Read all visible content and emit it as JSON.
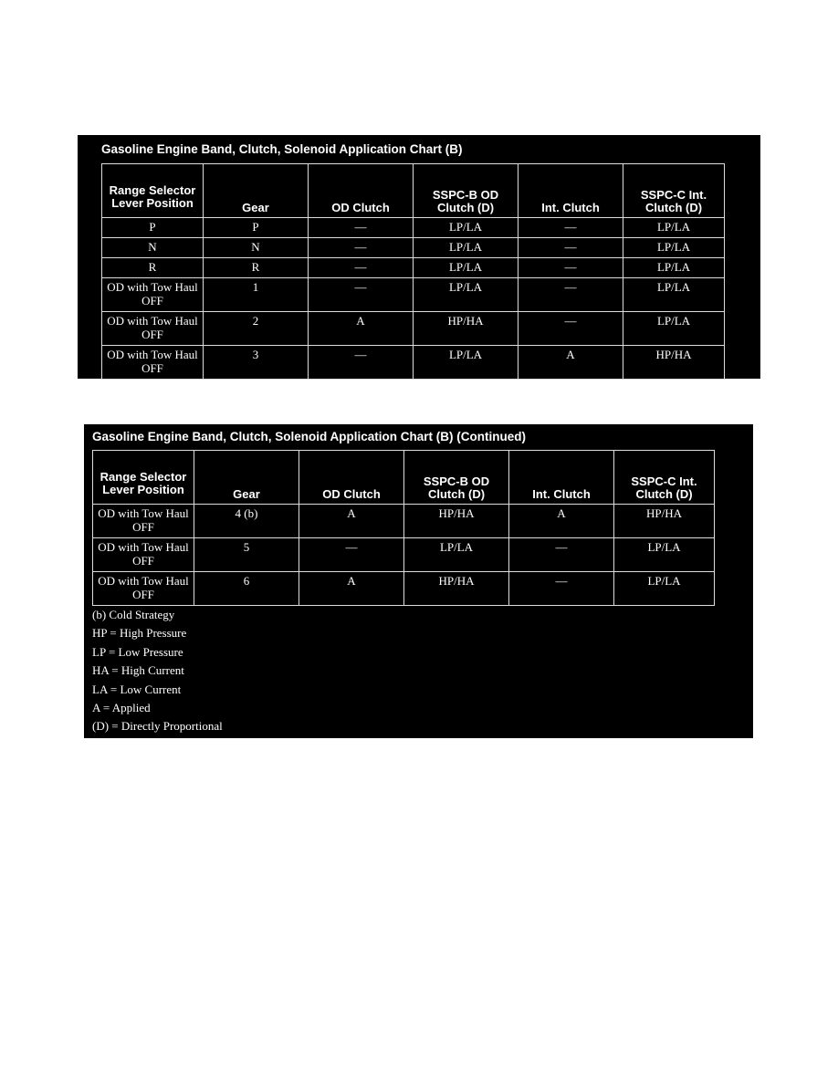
{
  "chart1": {
    "title": "Gasoline Engine Band, Clutch, Solenoid Application Chart (B)",
    "headers": [
      "Range Selector Lever Position",
      "Gear",
      "OD Clutch",
      "SSPC-B OD Clutch (D)",
      "Int. Clutch",
      "SSPC-C Int. Clutch (D)"
    ],
    "rows": [
      [
        "P",
        "P",
        "—",
        "LP/LA",
        "—",
        "LP/LA"
      ],
      [
        "N",
        "N",
        "—",
        "LP/LA",
        "—",
        "LP/LA"
      ],
      [
        "R",
        "R",
        "—",
        "LP/LA",
        "—",
        "LP/LA"
      ],
      [
        "OD with Tow Haul OFF",
        "1",
        "—",
        "LP/LA",
        "—",
        "LP/LA"
      ],
      [
        "OD with Tow Haul OFF",
        "2",
        "A",
        "HP/HA",
        "—",
        "LP/LA"
      ],
      [
        "OD with Tow Haul OFF",
        "3",
        "—",
        "LP/LA",
        "A",
        "HP/HA"
      ]
    ]
  },
  "chart2": {
    "title": "Gasoline Engine Band, Clutch, Solenoid Application Chart (B) (Continued)",
    "headers": [
      "Range Selector Lever Position",
      "Gear",
      "OD Clutch",
      "SSPC-B OD Clutch (D)",
      "Int. Clutch",
      "SSPC-C Int. Clutch (D)"
    ],
    "rows": [
      [
        "OD with Tow Haul OFF",
        "4 (b)",
        "A",
        "HP/HA",
        "A",
        "HP/HA"
      ],
      [
        "OD with Tow Haul OFF",
        "5",
        "—",
        "LP/LA",
        "—",
        "LP/LA"
      ],
      [
        "OD with Tow Haul OFF",
        "6",
        "A",
        "HP/HA",
        "—",
        "LP/LA"
      ]
    ],
    "legend": [
      "(b) Cold Strategy",
      "HP = High Pressure",
      "LP = Low Pressure",
      "HA = High Current",
      "LA = Low Current",
      "A = Applied",
      "(D) = Directly Proportional"
    ]
  }
}
